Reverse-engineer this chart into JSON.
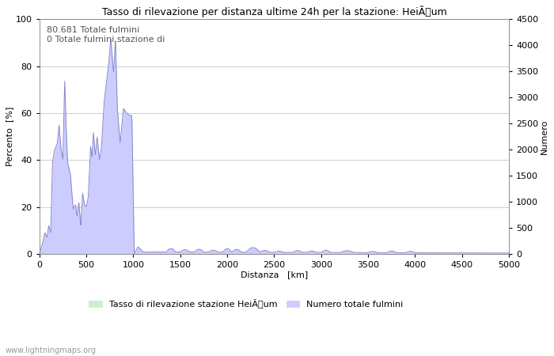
{
  "title": "Tasso di rilevazione per distanza ultime 24h per la stazione: HeiÃum",
  "xlabel": "Distanza   [km]",
  "ylabel_left": "Percento  [%]",
  "ylabel_right": "Numero",
  "annotation_line1": "80.681 Totale fulmini",
  "annotation_line2": "0 Totale fulmini stazione di",
  "legend_label1": "Tasso di rilevazione stazione HeiÃum",
  "legend_label2": "Numero totale fulmini",
  "watermark": "www.lightningmaps.org",
  "xlim": [
    0,
    5000
  ],
  "ylim_left": [
    0,
    100
  ],
  "ylim_right": [
    0,
    4500
  ],
  "xticks": [
    0,
    500,
    1000,
    1500,
    2000,
    2500,
    3000,
    3500,
    4000,
    4500,
    5000
  ],
  "yticks_left": [
    0,
    20,
    40,
    60,
    80,
    100
  ],
  "yticks_right": [
    0,
    500,
    1000,
    1500,
    2000,
    2500,
    3000,
    3500,
    4000,
    4500
  ],
  "fill_color_blue": "#ccccff",
  "fill_color_green": "#cceecc",
  "line_color": "#8888cc",
  "background_color": "#ffffff",
  "grid_color": "#bbbbbb",
  "fig_width": 7.0,
  "fig_height": 4.5,
  "dpi": 100,
  "title_fontsize": 9,
  "axis_fontsize": 8,
  "tick_fontsize": 8,
  "annotation_fontsize": 8,
  "legend_fontsize": 8,
  "watermark_fontsize": 7
}
